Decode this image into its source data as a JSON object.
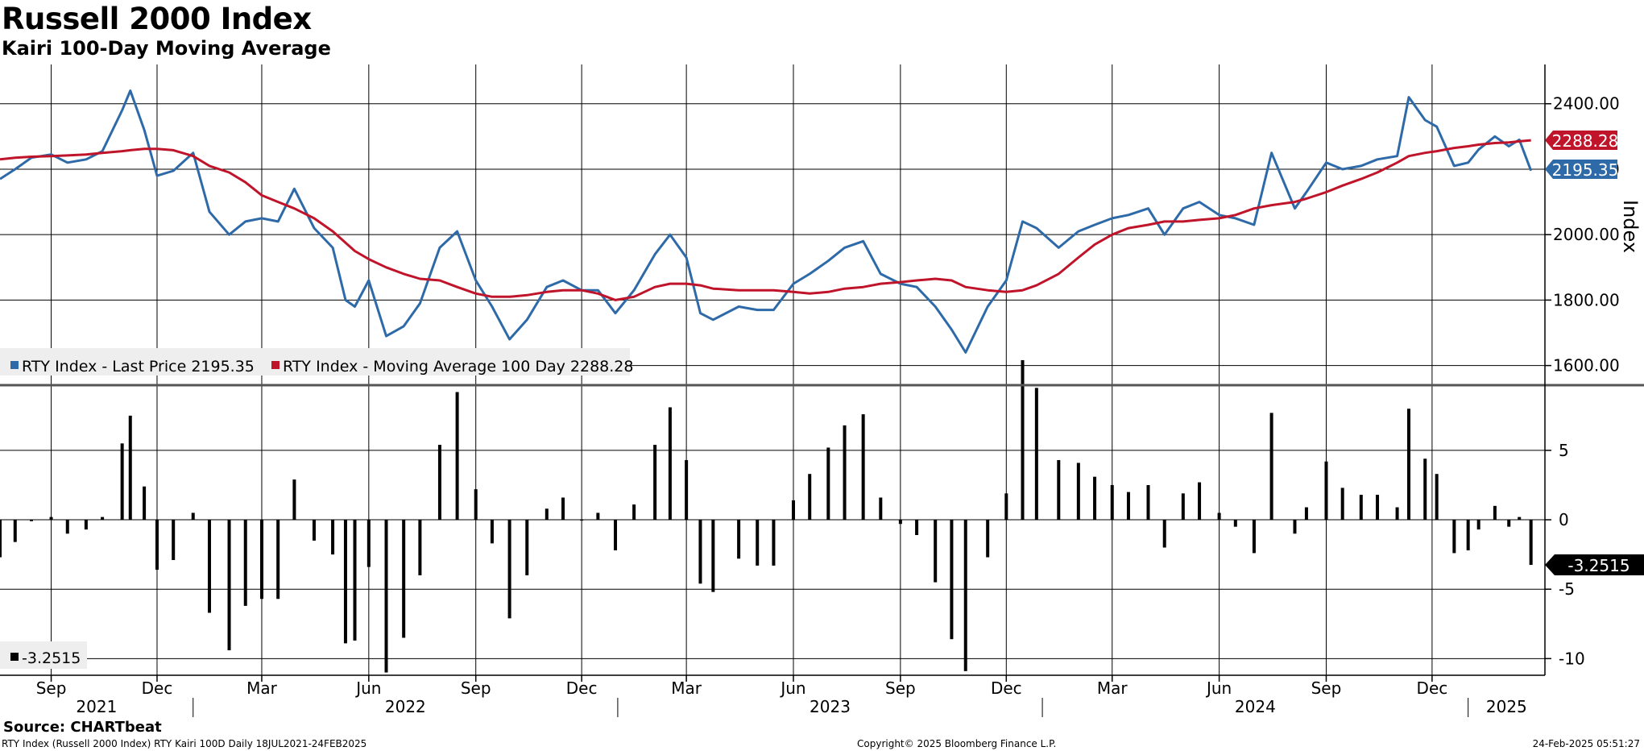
{
  "header": {
    "title": "Russell 2000 Index",
    "subtitle": "Kairi 100-Day Moving Average"
  },
  "colors": {
    "price": "#2e6aa8",
    "moving_average": "#c0142a",
    "kairi": "#000000",
    "grid": "#000000"
  },
  "footer": {
    "source": "Source: CHARTbeat",
    "description": "RTY Index (Russell 2000 Index) RTY Kairi 100D  Daily 18JUL2021-24FEB2025",
    "copyright": "Copyright© 2025 Bloomberg Finance L.P.",
    "timestamp": "24-Feb-2025 05:51:27"
  },
  "chart_data": [
    {
      "type": "line",
      "panel": "top",
      "ylabel": "Index",
      "ylim": [
        1540,
        2520
      ],
      "yticks": [
        "1600.00",
        "1800.00",
        "2000.00",
        "2200.00",
        "2400.00"
      ],
      "ytick_values": [
        1600,
        1800,
        2000,
        2200,
        2400
      ],
      "grid": true,
      "legend": [
        {
          "name": "RTY Index - Last Price 2195.35",
          "color": "#2e6aa8"
        },
        {
          "name": "RTY Index - Moving Average 100 Day 2288.28",
          "color": "#c0142a"
        }
      ],
      "last_value_tags": [
        {
          "label": "2288.28",
          "value": 2288.28,
          "color": "#c0142a"
        },
        {
          "label": "2195.35",
          "value": 2195.35,
          "color": "#2e6aa8"
        }
      ],
      "x_dates": [
        "2021-07-19",
        "2021-08-01",
        "2021-08-15",
        "2021-09-01",
        "2021-09-15",
        "2021-10-01",
        "2021-10-15",
        "2021-11-01",
        "2021-11-08",
        "2021-11-20",
        "2021-12-01",
        "2021-12-15",
        "2022-01-01",
        "2022-01-15",
        "2022-02-01",
        "2022-02-15",
        "2022-03-01",
        "2022-03-15",
        "2022-03-29",
        "2022-04-15",
        "2022-05-01",
        "2022-05-12",
        "2022-05-20",
        "2022-06-01",
        "2022-06-16",
        "2022-07-01",
        "2022-07-15",
        "2022-08-01",
        "2022-08-16",
        "2022-09-01",
        "2022-09-15",
        "2022-09-30",
        "2022-10-15",
        "2022-11-01",
        "2022-11-15",
        "2022-12-01",
        "2022-12-15",
        "2022-12-30",
        "2023-01-15",
        "2023-02-02",
        "2023-02-15",
        "2023-03-01",
        "2023-03-13",
        "2023-03-24",
        "2023-04-15",
        "2023-05-01",
        "2023-05-15",
        "2023-06-01",
        "2023-06-15",
        "2023-07-01",
        "2023-07-15",
        "2023-07-31",
        "2023-08-15",
        "2023-09-01",
        "2023-09-15",
        "2023-10-01",
        "2023-10-15",
        "2023-10-27",
        "2023-11-15",
        "2023-12-01",
        "2023-12-15",
        "2023-12-27",
        "2024-01-15",
        "2024-02-01",
        "2024-02-15",
        "2024-03-01",
        "2024-03-15",
        "2024-04-01",
        "2024-04-15",
        "2024-05-01",
        "2024-05-15",
        "2024-06-01",
        "2024-06-15",
        "2024-07-01",
        "2024-07-16",
        "2024-08-05",
        "2024-08-15",
        "2024-09-01",
        "2024-09-15",
        "2024-10-01",
        "2024-10-15",
        "2024-11-01",
        "2024-11-11",
        "2024-11-25",
        "2024-12-05",
        "2024-12-20",
        "2025-01-01",
        "2025-01-10",
        "2025-01-24",
        "2025-02-05",
        "2025-02-14",
        "2025-02-24"
      ],
      "series": [
        {
          "name": "RTY Index - Last Price",
          "color": "#2e6aa8",
          "values": [
            2170,
            2200,
            2235,
            2245,
            2220,
            2230,
            2255,
            2380,
            2440,
            2320,
            2180,
            2195,
            2250,
            2070,
            2000,
            2040,
            2050,
            2040,
            2140,
            2020,
            1960,
            1800,
            1780,
            1860,
            1690,
            1720,
            1790,
            1960,
            2010,
            1860,
            1780,
            1680,
            1740,
            1840,
            1860,
            1830,
            1830,
            1760,
            1830,
            1940,
            2000,
            1930,
            1760,
            1740,
            1780,
            1770,
            1770,
            1850,
            1880,
            1920,
            1960,
            1980,
            1880,
            1850,
            1840,
            1780,
            1710,
            1640,
            1780,
            1860,
            2040,
            2020,
            1960,
            2010,
            2030,
            2050,
            2060,
            2080,
            2000,
            2080,
            2100,
            2060,
            2050,
            2030,
            2250,
            2080,
            2130,
            2220,
            2200,
            2210,
            2230,
            2240,
            2420,
            2350,
            2330,
            2210,
            2220,
            2260,
            2300,
            2270,
            2290,
            2195.35
          ]
        },
        {
          "name": "RTY Index - Moving Average 100 Day",
          "color": "#c0142a",
          "values": [
            2230,
            2235,
            2238,
            2240,
            2242,
            2245,
            2250,
            2255,
            2258,
            2262,
            2262,
            2258,
            2240,
            2210,
            2190,
            2160,
            2120,
            2100,
            2080,
            2050,
            2010,
            1975,
            1950,
            1925,
            1900,
            1880,
            1865,
            1860,
            1840,
            1820,
            1810,
            1810,
            1815,
            1825,
            1830,
            1830,
            1820,
            1800,
            1810,
            1840,
            1850,
            1850,
            1845,
            1835,
            1830,
            1830,
            1830,
            1825,
            1820,
            1825,
            1835,
            1840,
            1850,
            1855,
            1860,
            1865,
            1860,
            1840,
            1830,
            1825,
            1830,
            1845,
            1880,
            1930,
            1970,
            2000,
            2020,
            2030,
            2040,
            2040,
            2045,
            2050,
            2060,
            2080,
            2090,
            2100,
            2110,
            2130,
            2150,
            2170,
            2190,
            2220,
            2240,
            2250,
            2255,
            2265,
            2270,
            2275,
            2280,
            2282,
            2285,
            2288.28
          ]
        }
      ]
    },
    {
      "type": "bar",
      "panel": "bottom",
      "series": [
        {
          "name": "RTY Kairi 100D",
          "color": "#000000"
        }
      ],
      "ylim": [
        -11.2,
        9
      ],
      "yticks": [
        "5",
        "0",
        "-5",
        "-10"
      ],
      "ytick_values": [
        5,
        0,
        -5,
        -10
      ],
      "grid": true,
      "legend": [
        {
          "name": "-3.2515",
          "color": "#000000"
        }
      ],
      "last_value_tags": [
        {
          "label": "-3.2515",
          "value": -3.2515,
          "color": "#000000"
        }
      ],
      "x_dates": [
        "2021-07-19",
        "2021-08-01",
        "2021-08-15",
        "2021-09-01",
        "2021-09-15",
        "2021-10-01",
        "2021-10-15",
        "2021-11-01",
        "2021-11-08",
        "2021-11-20",
        "2021-12-01",
        "2021-12-15",
        "2022-01-01",
        "2022-01-15",
        "2022-02-01",
        "2022-02-15",
        "2022-03-01",
        "2022-03-15",
        "2022-03-29",
        "2022-04-15",
        "2022-05-01",
        "2022-05-12",
        "2022-05-20",
        "2022-06-01",
        "2022-06-16",
        "2022-07-01",
        "2022-07-15",
        "2022-08-01",
        "2022-08-16",
        "2022-09-01",
        "2022-09-15",
        "2022-09-30",
        "2022-10-15",
        "2022-11-01",
        "2022-11-15",
        "2022-12-01",
        "2022-12-15",
        "2022-12-30",
        "2023-01-15",
        "2023-02-02",
        "2023-02-15",
        "2023-03-01",
        "2023-03-13",
        "2023-03-24",
        "2023-04-15",
        "2023-05-01",
        "2023-05-15",
        "2023-06-01",
        "2023-06-15",
        "2023-07-01",
        "2023-07-15",
        "2023-07-31",
        "2023-08-15",
        "2023-09-01",
        "2023-09-15",
        "2023-10-01",
        "2023-10-15",
        "2023-10-27",
        "2023-11-15",
        "2023-12-01",
        "2023-12-15",
        "2023-12-27",
        "2024-01-15",
        "2024-02-01",
        "2024-02-15",
        "2024-03-01",
        "2024-03-15",
        "2024-04-01",
        "2024-04-15",
        "2024-05-01",
        "2024-05-15",
        "2024-06-01",
        "2024-06-15",
        "2024-07-01",
        "2024-07-16",
        "2024-08-05",
        "2024-08-15",
        "2024-09-01",
        "2024-09-15",
        "2024-10-01",
        "2024-10-15",
        "2024-11-01",
        "2024-11-11",
        "2024-11-25",
        "2024-12-05",
        "2024-12-20",
        "2025-01-01",
        "2025-01-10",
        "2025-01-24",
        "2025-02-05",
        "2025-02-14",
        "2025-02-24"
      ],
      "values": [
        -2.7,
        -1.6,
        -0.1,
        0.2,
        -1.0,
        -0.7,
        0.2,
        5.5,
        7.5,
        2.4,
        -3.6,
        -2.9,
        0.5,
        -6.7,
        -9.4,
        -6.2,
        -5.7,
        -5.7,
        2.9,
        -1.5,
        -2.5,
        -8.9,
        -8.7,
        -3.4,
        -11.0,
        -8.5,
        -4.0,
        5.4,
        9.2,
        2.2,
        -1.7,
        -7.1,
        -4.0,
        0.8,
        1.6,
        0.0,
        0.5,
        -2.2,
        1.1,
        5.4,
        8.1,
        4.3,
        -4.6,
        -5.2,
        -2.8,
        -3.3,
        -3.3,
        1.4,
        3.3,
        5.2,
        6.8,
        7.6,
        1.6,
        -0.3,
        -1.1,
        -4.5,
        -8.6,
        -10.9,
        -2.7,
        1.9,
        11.5,
        9.5,
        4.3,
        4.1,
        3.1,
        2.5,
        2.0,
        2.5,
        -2.0,
        1.9,
        2.7,
        0.5,
        -0.5,
        -2.4,
        7.7,
        -1.0,
        0.9,
        4.2,
        2.3,
        1.8,
        1.8,
        0.9,
        8.0,
        4.4,
        3.3,
        -2.4,
        -2.2,
        -0.7,
        1.0,
        -0.5,
        0.2,
        -3.2515
      ]
    }
  ],
  "x_axis": {
    "months": [
      {
        "label": "Sep",
        "date": "2021-09-01"
      },
      {
        "label": "Dec",
        "date": "2021-12-01"
      },
      {
        "label": "Mar",
        "date": "2022-03-01"
      },
      {
        "label": "Jun",
        "date": "2022-06-01"
      },
      {
        "label": "Sep",
        "date": "2022-09-01"
      },
      {
        "label": "Dec",
        "date": "2022-12-01"
      },
      {
        "label": "Mar",
        "date": "2023-03-01"
      },
      {
        "label": "Jun",
        "date": "2023-06-01"
      },
      {
        "label": "Sep",
        "date": "2023-09-01"
      },
      {
        "label": "Dec",
        "date": "2023-12-01"
      },
      {
        "label": "Mar",
        "date": "2024-03-01"
      },
      {
        "label": "Jun",
        "date": "2024-06-01"
      },
      {
        "label": "Sep",
        "date": "2024-09-01"
      },
      {
        "label": "Dec",
        "date": "2024-12-01"
      }
    ],
    "years": [
      {
        "label": "2021",
        "start": "2021-07-19",
        "end": "2022-01-01"
      },
      {
        "label": "2022",
        "start": "2022-01-01",
        "end": "2023-01-01"
      },
      {
        "label": "2023",
        "start": "2023-01-01",
        "end": "2024-01-01"
      },
      {
        "label": "2024",
        "start": "2024-01-01",
        "end": "2025-01-01"
      },
      {
        "label": "2025",
        "start": "2025-01-01",
        "end": "2025-03-08"
      }
    ]
  }
}
